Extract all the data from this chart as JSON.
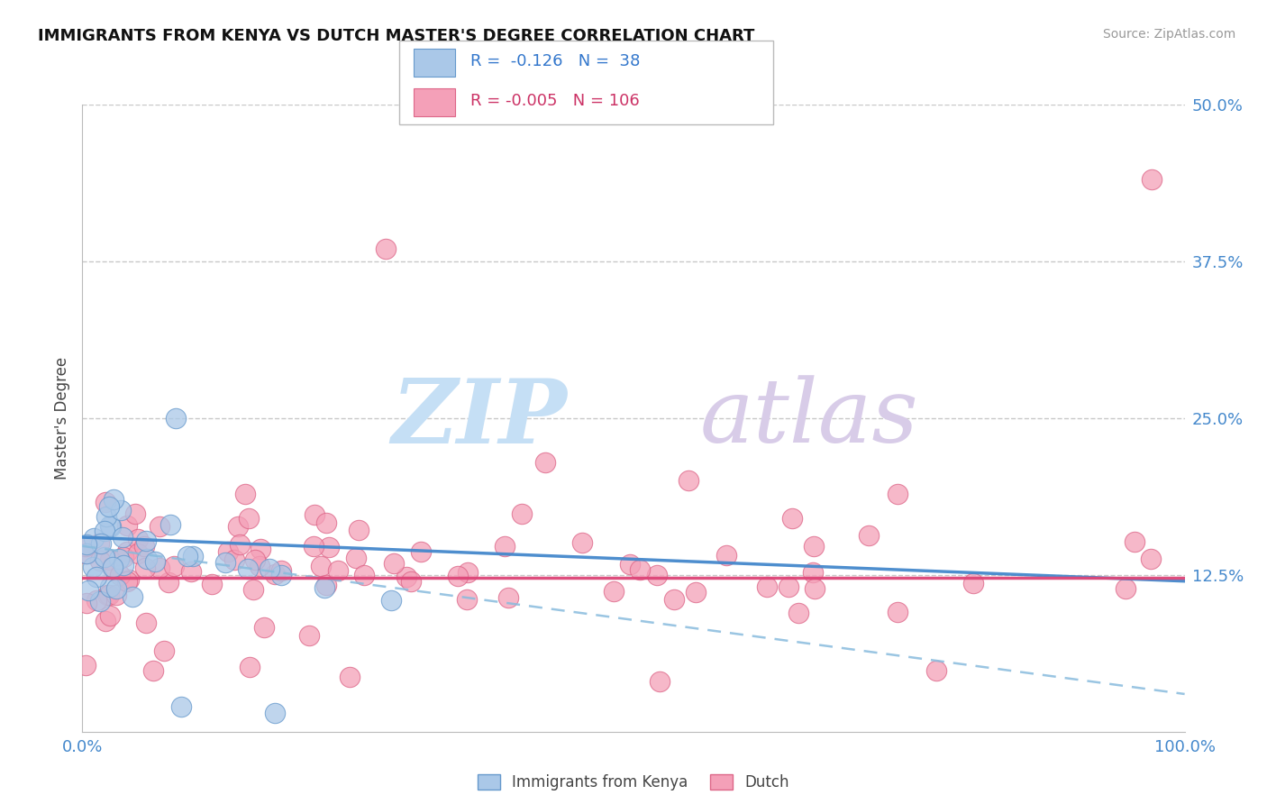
{
  "title": "IMMIGRANTS FROM KENYA VS DUTCH MASTER'S DEGREE CORRELATION CHART",
  "source_text": "Source: ZipAtlas.com",
  "ylabel": "Master's Degree",
  "xlim": [
    0.0,
    100.0
  ],
  "ylim": [
    0.0,
    50.0
  ],
  "yticks": [
    12.5,
    25.0,
    37.5,
    50.0
  ],
  "xticks": [
    0.0,
    100.0
  ],
  "xtick_labels": [
    "0.0%",
    "100.0%"
  ],
  "ytick_labels": [
    "12.5%",
    "25.0%",
    "37.5%",
    "50.0%"
  ],
  "background_color": "#ffffff",
  "grid_color": "#c8c8c8",
  "series1_name": "Immigrants from Kenya",
  "series1_color": "#aac8e8",
  "series1_edge_color": "#6699cc",
  "series2_name": "Dutch",
  "series2_color": "#f4a0b8",
  "series2_edge_color": "#dd6688",
  "series1_R": -0.126,
  "series1_N": 38,
  "series2_R": -0.005,
  "series2_N": 106,
  "trend1_x0": 0,
  "trend1_x1": 100,
  "trend1_y0": 15.5,
  "trend1_y1": 12.0,
  "trend2_y": 12.3,
  "trend_dashed_y0": 14.8,
  "trend_dashed_y1": 3.0,
  "tick_color": "#4488cc",
  "ylabel_color": "#444444",
  "legend_r1": "R =  -0.126   N =  38",
  "legend_r2": "R = -0.005   N = 106",
  "legend_color1": "#3377cc",
  "legend_color2": "#cc3366",
  "watermark_zip_color": "#c5dff5",
  "watermark_atlas_color": "#d8cce8",
  "source_color": "#999999"
}
